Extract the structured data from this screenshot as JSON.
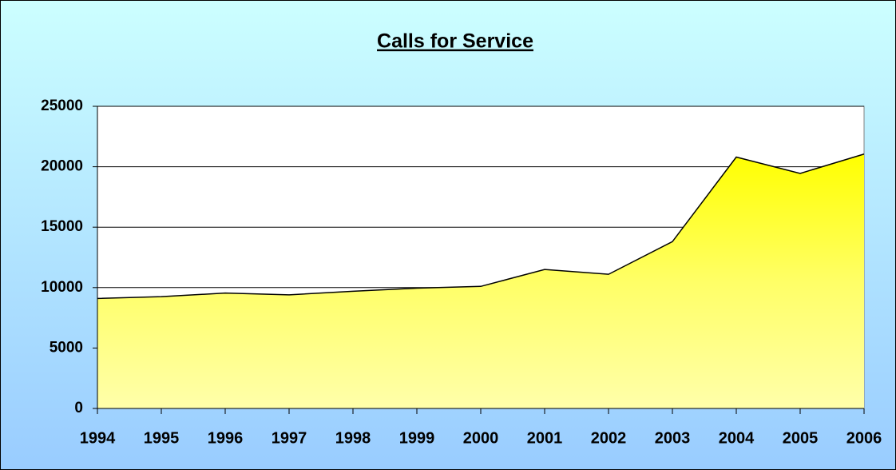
{
  "chart_data": {
    "type": "area",
    "title": "Calls for Service",
    "categories": [
      "1994",
      "1995",
      "1996",
      "1997",
      "1998",
      "1999",
      "2000",
      "2001",
      "2002",
      "2003",
      "2004",
      "2005",
      "2006"
    ],
    "values": [
      9100,
      9250,
      9550,
      9400,
      9700,
      9950,
      10100,
      11500,
      11100,
      13800,
      20800,
      19450,
      21050
    ],
    "color": "#ffff33",
    "ylim": [
      0,
      25000
    ],
    "yticks": [
      0,
      5000,
      10000,
      15000,
      20000,
      25000
    ],
    "grid": true
  }
}
